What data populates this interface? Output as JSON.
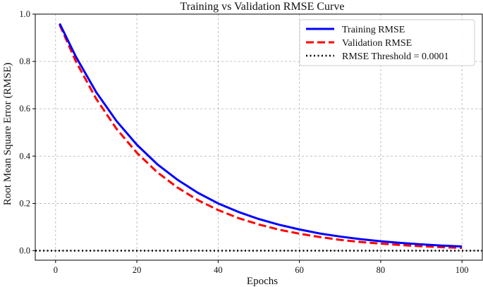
{
  "chart_data": {
    "type": "line",
    "title": "Training vs Validation RMSE Curve",
    "xlabel": "Epochs",
    "ylabel": "Root Mean Square Error (RMSE)",
    "xlim": [
      -5,
      105
    ],
    "ylim": [
      -0.04,
      1.0
    ],
    "xticks": [
      0,
      20,
      40,
      60,
      80,
      100
    ],
    "xtick_labels": [
      "0",
      "20",
      "40",
      "60",
      "80",
      "100"
    ],
    "yticks": [
      0.0,
      0.2,
      0.4,
      0.6,
      0.8,
      1.0
    ],
    "ytick_labels": [
      "0.0",
      "0.2",
      "0.4",
      "0.6",
      "0.8",
      "1.0"
    ],
    "grid": true,
    "legend_position": "top-right",
    "series": [
      {
        "name": "Training RMSE",
        "style": "solid",
        "color": "#0000ff",
        "x": [
          1,
          5,
          10,
          15,
          20,
          25,
          30,
          35,
          40,
          45,
          50,
          55,
          60,
          65,
          70,
          75,
          80,
          85,
          90,
          95,
          100
        ],
        "values": [
          0.96,
          0.82,
          0.67,
          0.548,
          0.448,
          0.366,
          0.3,
          0.245,
          0.2,
          0.164,
          0.134,
          0.11,
          0.09,
          0.073,
          0.06,
          0.049,
          0.04,
          0.033,
          0.027,
          0.022,
          0.018
        ]
      },
      {
        "name": "Validation RMSE",
        "style": "dashed",
        "color": "#ff0000",
        "x": [
          1,
          5,
          10,
          15,
          20,
          25,
          30,
          35,
          40,
          45,
          50,
          55,
          60,
          65,
          70,
          75,
          80,
          85,
          90,
          95,
          100
        ],
        "values": [
          0.955,
          0.8,
          0.642,
          0.515,
          0.414,
          0.332,
          0.267,
          0.214,
          0.172,
          0.138,
          0.111,
          0.089,
          0.072,
          0.058,
          0.046,
          0.037,
          0.03,
          0.024,
          0.019,
          0.015,
          0.012
        ]
      },
      {
        "name": "RMSE Threshold = 0.0001",
        "style": "dotted",
        "color": "#000000",
        "x": [
          -5,
          105
        ],
        "values": [
          0.0001,
          0.0001
        ]
      }
    ]
  }
}
